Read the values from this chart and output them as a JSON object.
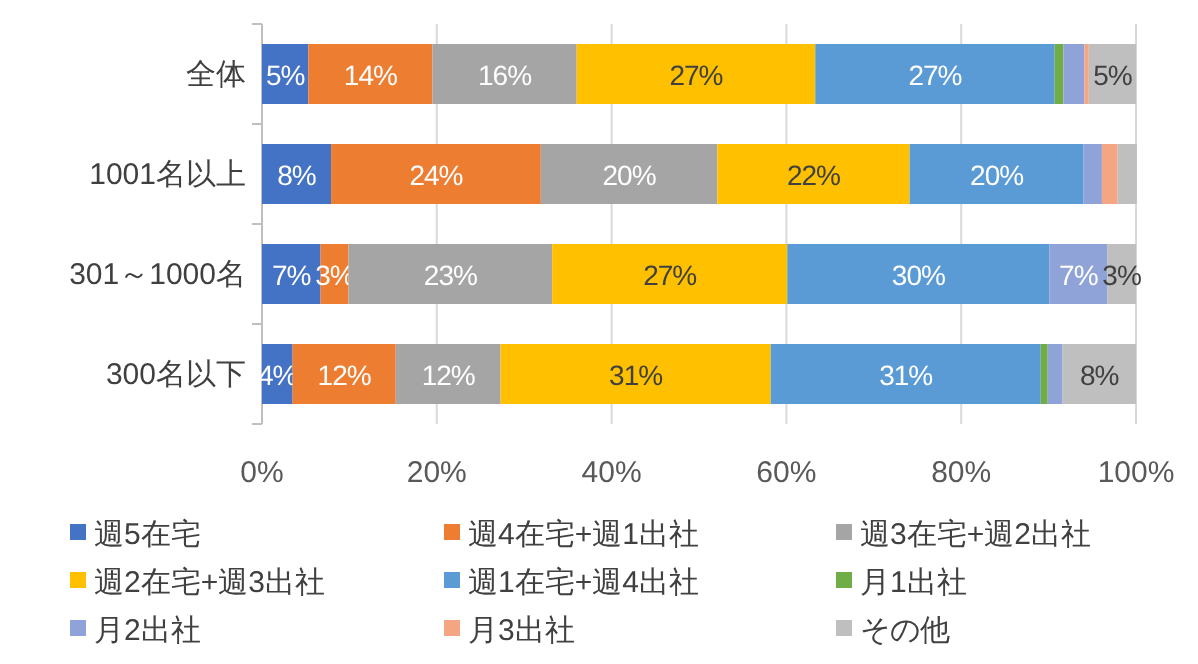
{
  "chart_data": {
    "type": "bar",
    "stacked": true,
    "orientation": "horizontal",
    "categories": [
      "全体",
      "1001名以上",
      "301～1000名",
      "300名以下"
    ],
    "series": [
      {
        "name": "週5在宅",
        "color": "#4472c4",
        "values": [
          5.3,
          7.9,
          6.7,
          3.5
        ],
        "value_labels": [
          "5%",
          "8%",
          "7%",
          "4%"
        ]
      },
      {
        "name": "週4在宅+週1出社",
        "color": "#ed7d31",
        "values": [
          14.2,
          24.0,
          3.2,
          11.8
        ],
        "value_labels": [
          "14%",
          "24%",
          "3%",
          "12%"
        ]
      },
      {
        "name": "週3在宅+週2出社",
        "color": "#a5a5a5",
        "values": [
          16.5,
          20.2,
          23.3,
          12.0
        ],
        "value_labels": [
          "16%",
          "20%",
          "23%",
          "12%"
        ]
      },
      {
        "name": "週2在宅+週3出社",
        "color": "#ffc000",
        "values": [
          27.3,
          22.0,
          26.9,
          30.9
        ],
        "value_labels": [
          "27%",
          "22%",
          "27%",
          "31%"
        ]
      },
      {
        "name": "週1在宅+週4出社",
        "color": "#5b9bd5",
        "values": [
          27.4,
          19.9,
          30.0,
          30.9
        ],
        "value_labels": [
          "27%",
          "20%",
          "30%",
          "31%"
        ]
      },
      {
        "name": "月1出社",
        "color": "#70ad47",
        "values": [
          1.0,
          0,
          0,
          0.8
        ],
        "value_labels": [
          null,
          null,
          null,
          null
        ]
      },
      {
        "name": "月2出社",
        "color": "#8fa3d9",
        "values": [
          2.4,
          2.1,
          6.6,
          1.7
        ],
        "value_labels": [
          null,
          null,
          "7%",
          null
        ]
      },
      {
        "name": "月3出社",
        "color": "#f4a582",
        "values": [
          0.5,
          1.8,
          0,
          0
        ],
        "value_labels": [
          null,
          null,
          null,
          null
        ]
      },
      {
        "name": "その他",
        "color": "#bfbfbf",
        "values": [
          5.4,
          2.2,
          3.3,
          8.4
        ],
        "value_labels": [
          "5%",
          null,
          "3%",
          "8%"
        ]
      }
    ],
    "xlim": [
      0,
      100
    ],
    "xticks": [
      {
        "value": 0,
        "label": "0%"
      },
      {
        "value": 20,
        "label": "20%"
      },
      {
        "value": 40,
        "label": "40%"
      },
      {
        "value": 60,
        "label": "60%"
      },
      {
        "value": 80,
        "label": "80%"
      },
      {
        "value": 100,
        "label": "100%"
      }
    ],
    "grid": "x",
    "legend": "bottom"
  }
}
